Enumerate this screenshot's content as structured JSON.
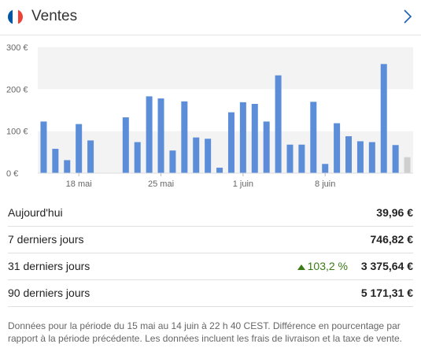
{
  "header": {
    "title": "Ventes",
    "flag_colors": [
      "#0055a4",
      "#ffffff",
      "#ef4135"
    ],
    "flag_icon": "france-flag-icon",
    "chevron_icon": "chevron-right-icon"
  },
  "chart_data": {
    "type": "bar",
    "y_ticks": [
      "300 €",
      "200 €",
      "100 €",
      "0 €"
    ],
    "ylim": [
      0,
      300
    ],
    "x_tick_labels": [
      "18 mai",
      "25 mai",
      "1 juin",
      "8 juin"
    ],
    "bar_color": "#5b8dd9",
    "current_bar_color": "#cfcfcf",
    "grid": true,
    "values": [
      123,
      58,
      31,
      117,
      78,
      0,
      0,
      133,
      74,
      183,
      178,
      54,
      171,
      85,
      82,
      13,
      145,
      169,
      165,
      123,
      233,
      68,
      68,
      170,
      22,
      119,
      88,
      76,
      74,
      260,
      67,
      38
    ]
  },
  "stats": [
    {
      "label": "Aujourd'hui",
      "value": "39,96 €",
      "delta": ""
    },
    {
      "label": "7 derniers jours",
      "value": "746,82 €",
      "delta": ""
    },
    {
      "label": "31 derniers jours",
      "value": "3 375,64 €",
      "delta": "103,2 %",
      "delta_color": "#3a7a15"
    },
    {
      "label": "90 derniers jours",
      "value": "5 171,31 €",
      "delta": ""
    }
  ],
  "footnote": "Données pour la période du 15 mai au 14 juin à 22 h 40 CEST. Différence en pourcentage par rapport à la période précédente. Les données incluent les frais de livraison et la taxe de vente."
}
